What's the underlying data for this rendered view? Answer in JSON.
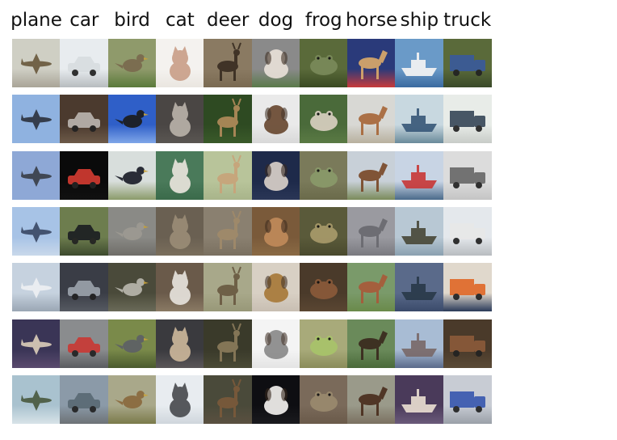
{
  "classes": [
    {
      "label": "plane",
      "thumbs": [
        {
          "subject": "plane",
          "bg": "#cfcfc4",
          "ground": "#a9a497",
          "fg": "#6b5a3e"
        },
        {
          "subject": "plane",
          "bg": "#8fb2e0",
          "ground": "#8fb2e0",
          "fg": "#2e3440"
        },
        {
          "subject": "plane",
          "bg": "#8ea8d6",
          "ground": "#8ea8d6",
          "fg": "#3a3f4a"
        },
        {
          "subject": "plane",
          "bg": "#a7c3e6",
          "ground": "#c9d8ea",
          "fg": "#3b4a66"
        },
        {
          "subject": "plane",
          "bg": "#c6d2df",
          "ground": "#9aa6b3",
          "fg": "#eef0f3"
        },
        {
          "subject": "plane",
          "bg": "#3a3556",
          "ground": "#5a4a6e",
          "fg": "#d9cbb8"
        },
        {
          "subject": "plane",
          "bg": "#a9c2cf",
          "ground": "#d8e3e8",
          "fg": "#4a5a40"
        }
      ]
    },
    {
      "label": "car",
      "thumbs": [
        {
          "subject": "car",
          "bg": "#e8ecef",
          "ground": "#b7bcbf",
          "fg": "#d8dde0"
        },
        {
          "subject": "car",
          "bg": "#4b3a2e",
          "ground": "#6d5a49",
          "fg": "#b9b3ad"
        },
        {
          "subject": "car",
          "bg": "#0a0a0a",
          "ground": "#111111",
          "fg": "#d03a30"
        },
        {
          "subject": "car",
          "bg": "#6d7d4e",
          "ground": "#3d4a2e",
          "fg": "#1c1f22"
        },
        {
          "subject": "car",
          "bg": "#3a3d46",
          "ground": "#565a62",
          "fg": "#9aa1aa"
        },
        {
          "subject": "car",
          "bg": "#8a8c8e",
          "ground": "#5a5c60",
          "fg": "#c83a36"
        },
        {
          "subject": "car",
          "bg": "#8b9aa8",
          "ground": "#6d7276",
          "fg": "#5a6a74"
        }
      ]
    },
    {
      "label": "bird",
      "thumbs": [
        {
          "subject": "bird",
          "bg": "#8f9a6b",
          "ground": "#5a7a3a",
          "fg": "#7a6a4e"
        },
        {
          "subject": "bird",
          "bg": "#2f5fc8",
          "ground": "#7fa6e8",
          "fg": "#1c1c1c"
        },
        {
          "subject": "bird",
          "bg": "#d8dedc",
          "ground": "#8a9a6a",
          "fg": "#1c1f2a"
        },
        {
          "subject": "bird",
          "bg": "#8a8a86",
          "ground": "#6f6d68",
          "fg": "#9d9a92"
        },
        {
          "subject": "bird",
          "bg": "#4a4a3a",
          "ground": "#6a6a58",
          "fg": "#b8b6ac"
        },
        {
          "subject": "bird",
          "bg": "#7a8a4a",
          "ground": "#4a5a2e",
          "fg": "#5d6066"
        },
        {
          "subject": "bird",
          "bg": "#a9a88a",
          "ground": "#7a7a4a",
          "fg": "#8a6a3e"
        }
      ]
    },
    {
      "label": "cat",
      "thumbs": [
        {
          "subject": "cat",
          "bg": "#f4f2ef",
          "ground": "#eae6e0",
          "fg": "#caa08a"
        },
        {
          "subject": "cat",
          "bg": "#4a4644",
          "ground": "#5a5652",
          "fg": "#b8b1a8"
        },
        {
          "subject": "cat",
          "bg": "#4a7a5a",
          "ground": "#3a6a4a",
          "fg": "#e8e4dc"
        },
        {
          "subject": "cat",
          "bg": "#6a6052",
          "ground": "#7a6e5c",
          "fg": "#9a8c76"
        },
        {
          "subject": "cat",
          "bg": "#6a5a4a",
          "ground": "#8a7a64",
          "fg": "#e6e2dc"
        },
        {
          "subject": "cat",
          "bg": "#3a3a3e",
          "ground": "#5a5658",
          "fg": "#cbb69a"
        },
        {
          "subject": "cat",
          "bg": "#e8ecf0",
          "ground": "#cfd6dc",
          "fg": "#4a4c50"
        }
      ]
    },
    {
      "label": "deer",
      "thumbs": [
        {
          "subject": "deer",
          "bg": "#8a7a62",
          "ground": "#7a6a52",
          "fg": "#3a2e22"
        },
        {
          "subject": "deer",
          "bg": "#2e4a22",
          "ground": "#3a5a2a",
          "fg": "#b08a5a"
        },
        {
          "subject": "deer",
          "bg": "#b8c49a",
          "ground": "#a8b48a",
          "fg": "#c8a47a"
        },
        {
          "subject": "deer",
          "bg": "#8a8070",
          "ground": "#7a7060",
          "fg": "#a08a6a"
        },
        {
          "subject": "deer",
          "bg": "#a8a88a",
          "ground": "#989878",
          "fg": "#6a5a42"
        },
        {
          "subject": "deer",
          "bg": "#3a3a2a",
          "ground": "#4a4a36",
          "fg": "#8a7a5a"
        },
        {
          "subject": "deer",
          "bg": "#4a4a3a",
          "ground": "#5a5040",
          "fg": "#7a5a3a"
        }
      ]
    },
    {
      "label": "dog",
      "thumbs": [
        {
          "subject": "dog",
          "bg": "#8a8a8a",
          "ground": "#5a7a4a",
          "fg": "#e8e0d8"
        },
        {
          "subject": "dog",
          "bg": "#eaeaea",
          "ground": "#d8d8d8",
          "fg": "#6a4a32"
        },
        {
          "subject": "dog",
          "bg": "#1e2a4a",
          "ground": "#2a3656",
          "fg": "#d8cfc8"
        },
        {
          "subject": "dog",
          "bg": "#7a5a3a",
          "ground": "#8a6a44",
          "fg": "#c08a5a"
        },
        {
          "subject": "dog",
          "bg": "#d8d0c4",
          "ground": "#c8beb2",
          "fg": "#a87a3a"
        },
        {
          "subject": "dog",
          "bg": "#f4f4f4",
          "ground": "#e4e4e4",
          "fg": "#8a8a8a"
        },
        {
          "subject": "dog",
          "bg": "#0e0e12",
          "ground": "#1a1a1e",
          "fg": "#f2f0ee"
        }
      ]
    },
    {
      "label": "frog",
      "thumbs": [
        {
          "subject": "frog",
          "bg": "#5a6a3a",
          "ground": "#3a4a22",
          "fg": "#7a8a5a"
        },
        {
          "subject": "frog",
          "bg": "#4a6a3a",
          "ground": "#5a7a44",
          "fg": "#d8cfc0"
        },
        {
          "subject": "frog",
          "bg": "#7a7a5a",
          "ground": "#6a6a4a",
          "fg": "#8a9a6a"
        },
        {
          "subject": "frog",
          "bg": "#5a5a3a",
          "ground": "#4a4a2e",
          "fg": "#a89a6a"
        },
        {
          "subject": "frog",
          "bg": "#4a3a2a",
          "ground": "#5a4632",
          "fg": "#8a5a3a"
        },
        {
          "subject": "frog",
          "bg": "#a8aa7a",
          "ground": "#8a8c5a",
          "fg": "#a8c46a"
        },
        {
          "subject": "frog",
          "bg": "#7a6a5a",
          "ground": "#6a5a4a",
          "fg": "#9a8a6e"
        }
      ]
    },
    {
      "label": "horse",
      "thumbs": [
        {
          "subject": "horse",
          "bg": "#2a3a7a",
          "ground": "#c83a3a",
          "fg": "#d8a86a"
        },
        {
          "subject": "horse",
          "bg": "#d8d8d4",
          "ground": "#b8b09e",
          "fg": "#a8683a"
        },
        {
          "subject": "horse",
          "bg": "#c8d0d8",
          "ground": "#7a8a5a",
          "fg": "#7a4a2a"
        },
        {
          "subject": "horse",
          "bg": "#9a9aa0",
          "ground": "#7a7a80",
          "fg": "#6a6a70"
        },
        {
          "subject": "horse",
          "bg": "#7a9a6a",
          "ground": "#6a8a4a",
          "fg": "#a85a3a"
        },
        {
          "subject": "horse",
          "bg": "#6a8a5a",
          "ground": "#4a6a3a",
          "fg": "#3a2a1e"
        },
        {
          "subject": "horse",
          "bg": "#9a9a8a",
          "ground": "#7a7060",
          "fg": "#4a2e1e"
        }
      ]
    },
    {
      "label": "ship",
      "thumbs": [
        {
          "subject": "ship",
          "bg": "#6a9ac8",
          "ground": "#3a6aa0",
          "fg": "#f4f4f4"
        },
        {
          "subject": "ship",
          "bg": "#c8d8e0",
          "ground": "#6a8a9a",
          "fg": "#3a5a7a"
        },
        {
          "subject": "ship",
          "bg": "#c8d4e4",
          "ground": "#4a6a8a",
          "fg": "#c83a3a"
        },
        {
          "subject": "ship",
          "bg": "#b8c8d4",
          "ground": "#8aa0b0",
          "fg": "#4a4a3a"
        },
        {
          "subject": "ship",
          "bg": "#5a6a8a",
          "ground": "#3a4a6a",
          "fg": "#2a3a4a"
        },
        {
          "subject": "ship",
          "bg": "#a8bcd4",
          "ground": "#5a6a8a",
          "fg": "#7a6a6a"
        },
        {
          "subject": "ship",
          "bg": "#4a3a5a",
          "ground": "#6a5a7a",
          "fg": "#e8dcd0"
        }
      ]
    },
    {
      "label": "truck",
      "thumbs": [
        {
          "subject": "truck",
          "bg": "#5a6a3a",
          "ground": "#3a4a2a",
          "fg": "#3a5a9a"
        },
        {
          "subject": "truck",
          "bg": "#e8ece8",
          "ground": "#c8ccc8",
          "fg": "#3a4a5a"
        },
        {
          "subject": "truck",
          "bg": "#dcdcdc",
          "ground": "#c4c4c4",
          "fg": "#6a6a6a"
        },
        {
          "subject": "truck",
          "bg": "#e4e8ec",
          "ground": "#b8bcc0",
          "fg": "#e8e8e8"
        },
        {
          "subject": "truck",
          "bg": "#e0d8cc",
          "ground": "#2a3a5a",
          "fg": "#e06a2a"
        },
        {
          "subject": "truck",
          "bg": "#4a3a2a",
          "ground": "#5a4a36",
          "fg": "#8a5a3a"
        },
        {
          "subject": "truck",
          "bg": "#c8ccd4",
          "ground": "#9aa0a8",
          "fg": "#3a5ab0"
        }
      ]
    }
  ]
}
